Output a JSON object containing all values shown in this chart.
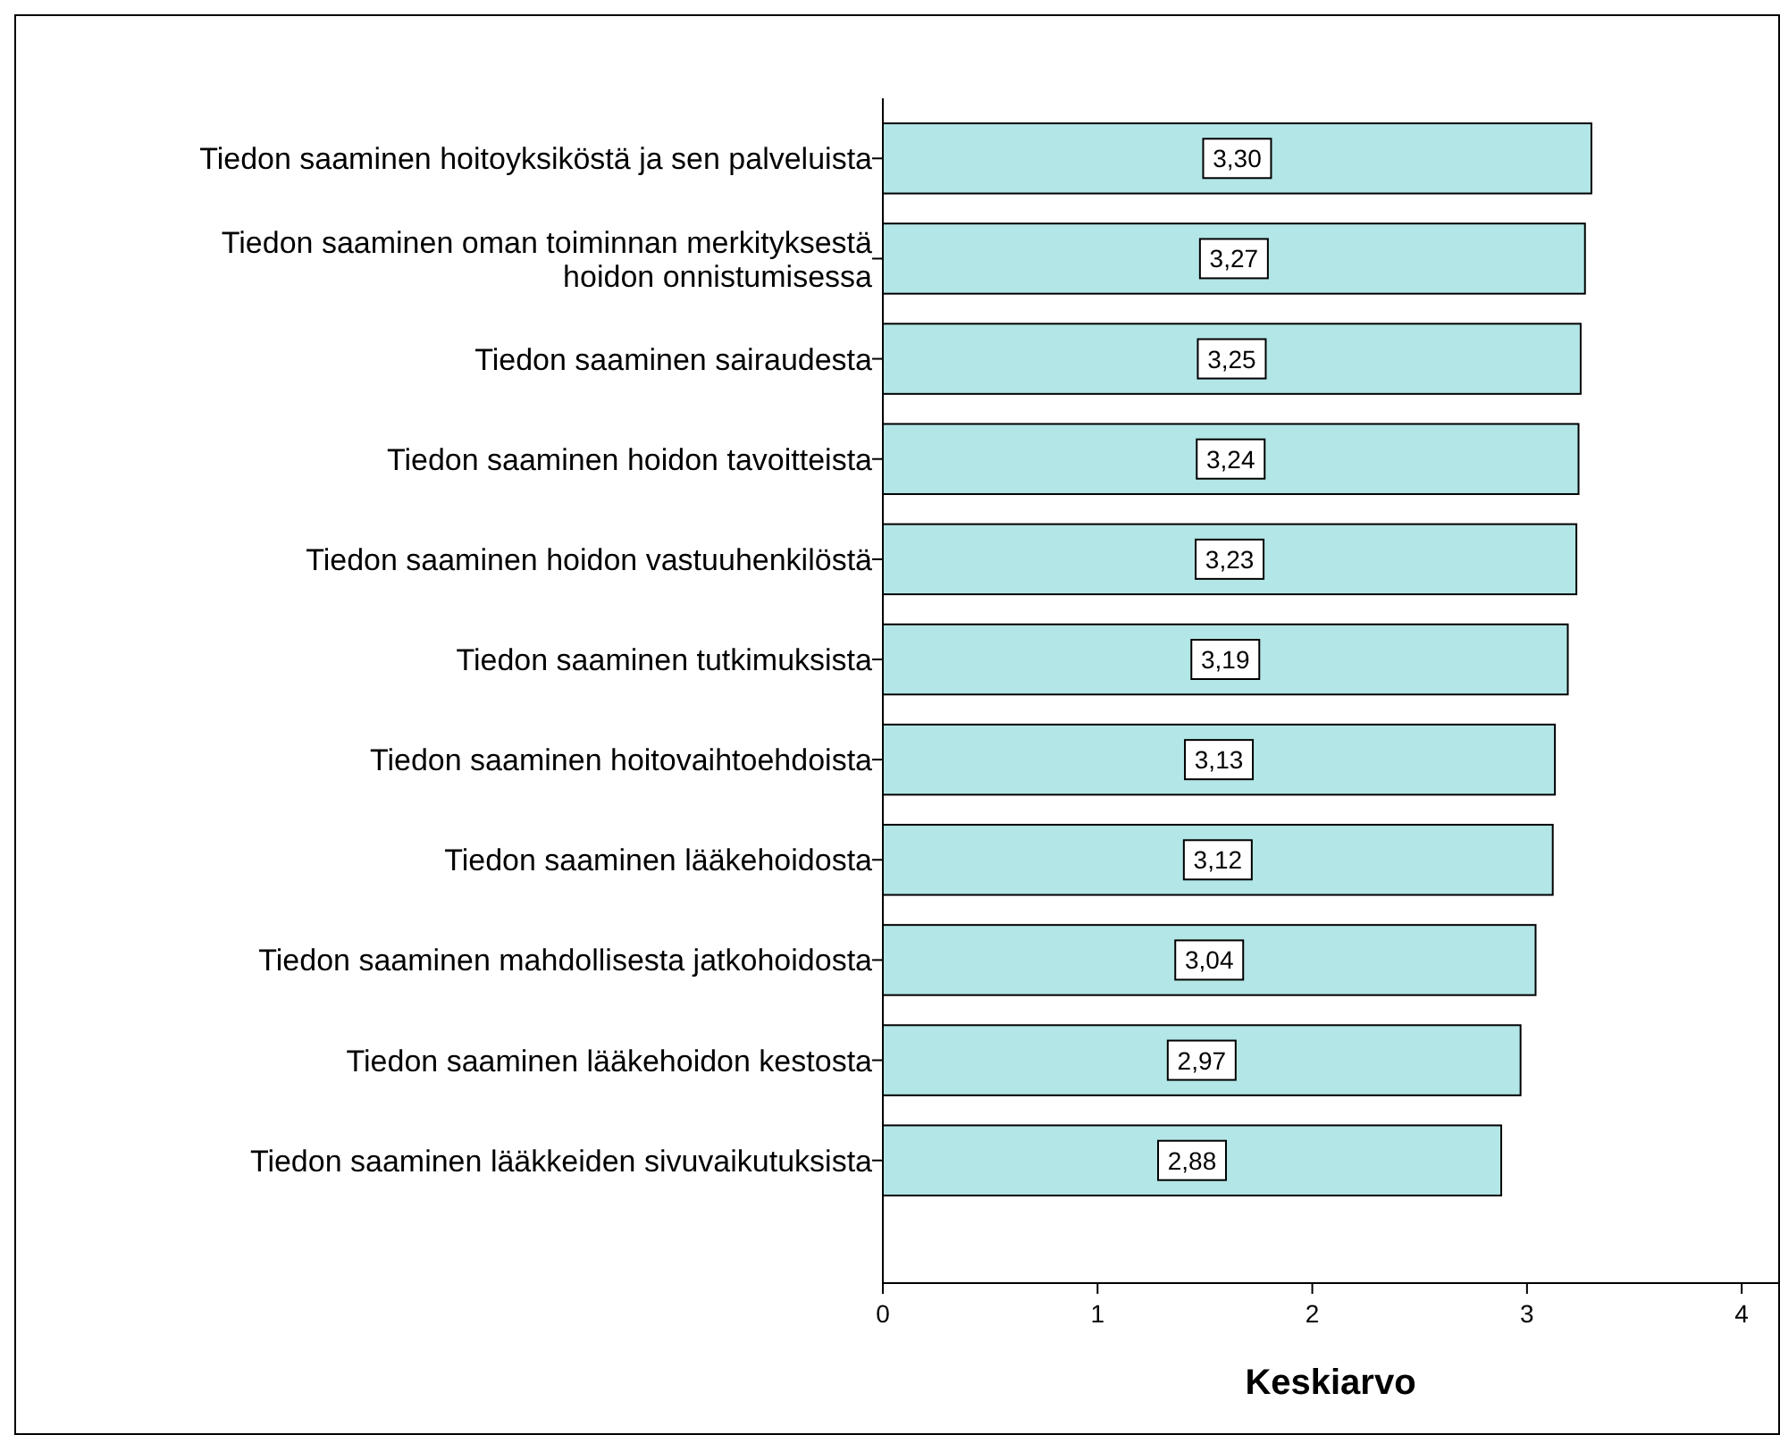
{
  "chart_data": {
    "type": "bar",
    "orientation": "horizontal",
    "xlabel": "Keskiarvo",
    "categories": [
      "Tiedon saaminen hoitoyksiköstä ja sen palveluista",
      "Tiedon saaminen oman toiminnan merkityksestä\nhoidon onnistumisessa",
      "Tiedon saaminen sairaudesta",
      "Tiedon saaminen hoidon tavoitteista",
      "Tiedon saaminen hoidon vastuuhenkilöstä",
      "Tiedon saaminen tutkimuksista",
      "Tiedon saaminen hoitovaihtoehdoista",
      "Tiedon saaminen lääkehoidosta",
      "Tiedon saaminen mahdollisesta jatkohoidosta",
      "Tiedon saaminen lääkehoidon kestosta",
      "Tiedon saaminen lääkkeiden sivuvaikutuksista"
    ],
    "values": [
      3.3,
      3.27,
      3.25,
      3.24,
      3.23,
      3.19,
      3.13,
      3.12,
      3.04,
      2.97,
      2.88
    ],
    "value_labels": [
      "3,30",
      "3,27",
      "3,25",
      "3,24",
      "3,23",
      "3,19",
      "3,13",
      "3,12",
      "3,04",
      "2,97",
      "2,88"
    ],
    "color": "#b3e6e6",
    "xlim": [
      0,
      4.17
    ],
    "xticks": [
      0,
      1,
      2,
      3,
      4
    ],
    "grid": false
  }
}
